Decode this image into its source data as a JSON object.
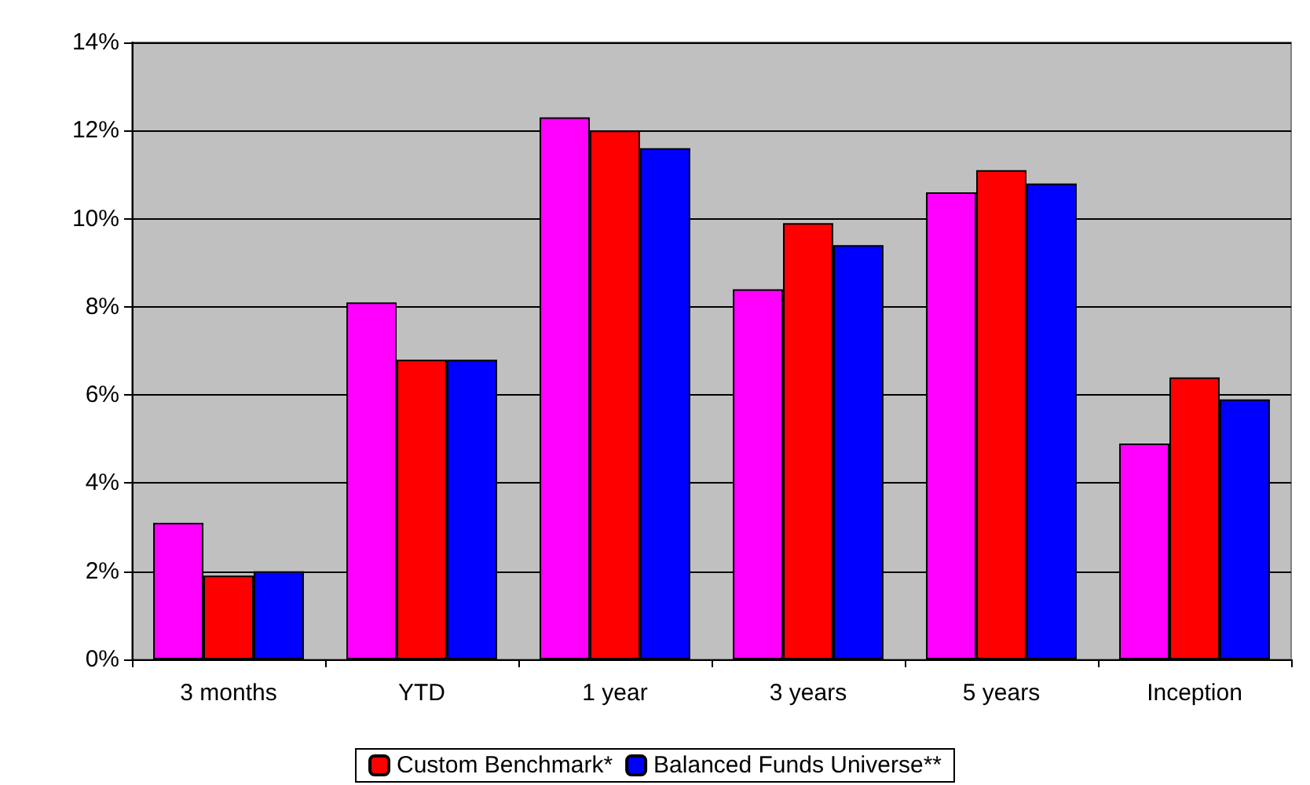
{
  "chart_data": {
    "type": "bar",
    "categories": [
      "3 months",
      "YTD",
      "1 year",
      "3 years",
      "5 years",
      "Inception"
    ],
    "series": [
      {
        "color": "#ff00ff",
        "values": [
          3.1,
          8.1,
          12.3,
          8.4,
          10.6,
          4.9
        ]
      },
      {
        "name": "Custom Benchmark*",
        "color": "#ff0000",
        "values": [
          1.9,
          6.8,
          12.0,
          9.9,
          11.1,
          6.4
        ]
      },
      {
        "name": "Balanced Funds Universe**",
        "color": "#0000ff",
        "values": [
          2.0,
          6.8,
          11.6,
          9.4,
          10.8,
          5.9
        ]
      }
    ],
    "ylim": [
      0,
      14
    ],
    "yticks": [
      {
        "value": 0,
        "label": "0%"
      },
      {
        "value": 2,
        "label": "2%"
      },
      {
        "value": 4,
        "label": "4%"
      },
      {
        "value": 6,
        "label": "6%"
      },
      {
        "value": 8,
        "label": "8%"
      },
      {
        "value": 10,
        "label": "10%"
      },
      {
        "value": 12,
        "label": "12%"
      },
      {
        "value": 14,
        "label": "14%"
      }
    ],
    "grid": "y",
    "legend": "bottom"
  }
}
